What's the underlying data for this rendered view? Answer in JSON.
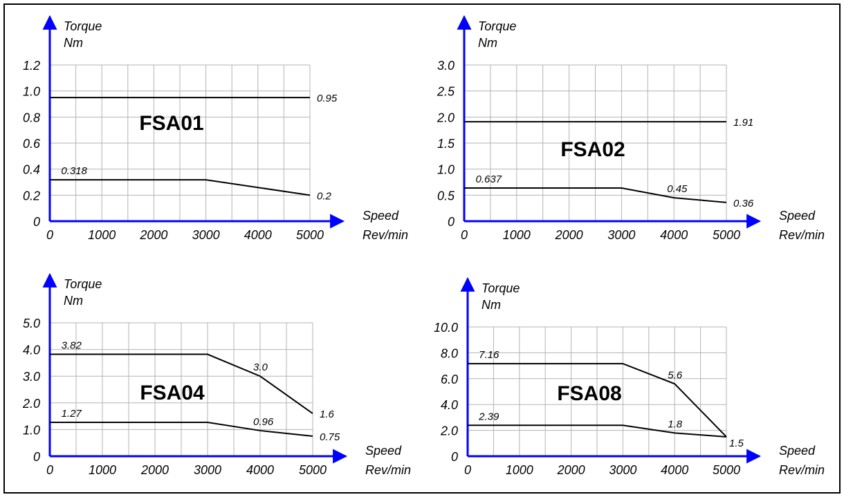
{
  "colors": {
    "axis": "#0000ff",
    "grid": "#b3b3b3",
    "line": "#000000",
    "frame": "#000000",
    "text": "#000000"
  },
  "chart_data": [
    {
      "type": "line",
      "title": "FSA01",
      "ylabel": "Torque",
      "yunit": "Nm",
      "xlabel": "Speed",
      "xunit": "Rev/min",
      "xlim": [
        0,
        5000
      ],
      "ylim": [
        0,
        1.2
      ],
      "xticks": [
        0,
        1000,
        2000,
        3000,
        4000,
        5000
      ],
      "xtick_labels": [
        "0",
        "1000",
        "2000",
        "3000",
        "4000",
        "5000"
      ],
      "yticks": [
        0,
        0.2,
        0.4,
        0.6,
        0.8,
        1.0,
        1.2
      ],
      "ytick_labels": [
        "0",
        "0.2",
        "0.4",
        "0.6",
        "0.8",
        "1.0",
        "1.2"
      ],
      "grid": true,
      "series": [
        {
          "points": [
            [
              0,
              0.95
            ],
            [
              5000,
              0.95
            ]
          ]
        },
        {
          "points": [
            [
              0,
              0.318
            ],
            [
              3000,
              0.318
            ],
            [
              5000,
              0.2
            ]
          ]
        }
      ],
      "annotations": [
        {
          "text": "0.95",
          "x": 5000,
          "y": 0.95,
          "pos": "right"
        },
        {
          "text": "0.318",
          "x": 350,
          "y": 0.318,
          "pos": "above"
        },
        {
          "text": "0.2",
          "x": 5000,
          "y": 0.2,
          "pos": "right"
        }
      ]
    },
    {
      "type": "line",
      "title": "FSA02",
      "ylabel": "Torque",
      "yunit": "Nm",
      "xlabel": "Speed",
      "xunit": "Rev/min",
      "xlim": [
        0,
        5000
      ],
      "ylim": [
        0,
        3.0
      ],
      "xticks": [
        0,
        1000,
        2000,
        3000,
        4000,
        5000
      ],
      "xtick_labels": [
        "0",
        "1000",
        "2000",
        "3000",
        "4000",
        "5000"
      ],
      "yticks": [
        0,
        0.5,
        1.0,
        1.5,
        2.0,
        2.5,
        3.0
      ],
      "ytick_labels": [
        "0",
        "0.5",
        "1.0",
        "1.5",
        "2.0",
        "2.5",
        "3.0"
      ],
      "grid": true,
      "series": [
        {
          "points": [
            [
              0,
              1.91
            ],
            [
              5000,
              1.91
            ]
          ]
        },
        {
          "points": [
            [
              0,
              0.637
            ],
            [
              3000,
              0.637
            ],
            [
              4000,
              0.45
            ],
            [
              5000,
              0.36
            ]
          ]
        }
      ],
      "annotations": [
        {
          "text": "1.91",
          "x": 5000,
          "y": 1.91,
          "pos": "right"
        },
        {
          "text": "0.637",
          "x": 350,
          "y": 0.637,
          "pos": "above"
        },
        {
          "text": "0.45",
          "x": 4000,
          "y": 0.45,
          "pos": "above"
        },
        {
          "text": "0.36",
          "x": 5000,
          "y": 0.36,
          "pos": "right"
        }
      ]
    },
    {
      "type": "line",
      "title": "FSA04",
      "ylabel": "Torque",
      "yunit": "Nm",
      "xlabel": "Speed",
      "xunit": "Rev/min",
      "xlim": [
        0,
        5000
      ],
      "ylim": [
        0,
        5.0
      ],
      "xticks": [
        0,
        1000,
        2000,
        3000,
        4000,
        5000
      ],
      "xtick_labels": [
        "0",
        "1000",
        "2000",
        "3000",
        "4000",
        "5000"
      ],
      "yticks": [
        0,
        1.0,
        2.0,
        3.0,
        4.0,
        5.0
      ],
      "ytick_labels": [
        "0",
        "1.0",
        "2.0",
        "3.0",
        "4.0",
        "5.0"
      ],
      "grid": true,
      "series": [
        {
          "points": [
            [
              0,
              3.82
            ],
            [
              3000,
              3.82
            ],
            [
              4000,
              3.0
            ],
            [
              5000,
              1.6
            ]
          ]
        },
        {
          "points": [
            [
              0,
              1.27
            ],
            [
              3000,
              1.27
            ],
            [
              4000,
              0.96
            ],
            [
              5000,
              0.75
            ]
          ]
        }
      ],
      "annotations": [
        {
          "text": "3.82",
          "x": 350,
          "y": 3.82,
          "pos": "above"
        },
        {
          "text": "3.0",
          "x": 4000,
          "y": 3.0,
          "pos": "above"
        },
        {
          "text": "1.6",
          "x": 5000,
          "y": 1.6,
          "pos": "right"
        },
        {
          "text": "1.27",
          "x": 350,
          "y": 1.27,
          "pos": "above"
        },
        {
          "text": "0.96",
          "x": 4000,
          "y": 0.96,
          "pos": "above"
        },
        {
          "text": "0.75",
          "x": 5000,
          "y": 0.75,
          "pos": "right"
        }
      ]
    },
    {
      "type": "line",
      "title": "FSA08",
      "ylabel": "Torque",
      "yunit": "Nm",
      "xlabel": "Speed",
      "xunit": "Rev/min",
      "xlim": [
        0,
        5000
      ],
      "ylim": [
        0,
        10.0
      ],
      "xticks": [
        0,
        1000,
        2000,
        3000,
        4000,
        5000
      ],
      "xtick_labels": [
        "0",
        "1000",
        "2000",
        "3000",
        "4000",
        "5000"
      ],
      "yticks": [
        0,
        2.0,
        4.0,
        6.0,
        8.0,
        10.0
      ],
      "ytick_labels": [
        "0",
        "2.0",
        "4.0",
        "6.0",
        "8.0",
        "10.0"
      ],
      "grid": true,
      "series": [
        {
          "points": [
            [
              0,
              7.16
            ],
            [
              3000,
              7.16
            ],
            [
              4000,
              5.6
            ],
            [
              5000,
              1.5
            ]
          ]
        },
        {
          "points": [
            [
              0,
              2.39
            ],
            [
              3000,
              2.39
            ],
            [
              4000,
              1.8
            ],
            [
              5000,
              1.5
            ]
          ]
        }
      ],
      "annotations": [
        {
          "text": "7.16",
          "x": 350,
          "y": 7.16,
          "pos": "above"
        },
        {
          "text": "5.6",
          "x": 4000,
          "y": 5.6,
          "pos": "above"
        },
        {
          "text": "2.39",
          "x": 350,
          "y": 2.39,
          "pos": "above"
        },
        {
          "text": "1.8",
          "x": 4000,
          "y": 1.8,
          "pos": "above"
        },
        {
          "text": "1.5",
          "x": 5000,
          "y": 1.5,
          "pos": "right-below"
        }
      ]
    }
  ]
}
